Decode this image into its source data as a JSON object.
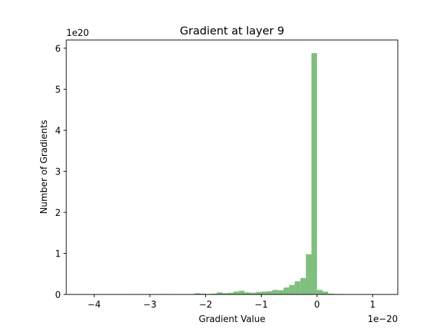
{
  "chart_data": {
    "type": "bar",
    "title": "Gradient at layer 9",
    "xlabel": "Gradient Value",
    "ylabel": "Number of Gradients",
    "x_multiplier_label": "1e−20",
    "y_multiplier_label": "1e20",
    "xlim": [
      -4.5,
      1.45
    ],
    "ylim": [
      0,
      6.2
    ],
    "x_ticks": [
      -4,
      -3,
      -2,
      -1,
      0,
      1
    ],
    "x_tick_labels": [
      "−4",
      "−3",
      "−2",
      "−1",
      "0",
      "1"
    ],
    "y_ticks": [
      0,
      1,
      2,
      3,
      4,
      5,
      6
    ],
    "y_tick_labels": [
      "0",
      "1",
      "2",
      "3",
      "4",
      "5",
      "6"
    ],
    "bar_color": "#7fbf7f",
    "bin_width": 0.1,
    "bins": [
      {
        "x": -3.3,
        "y": 0.01
      },
      {
        "x": -2.8,
        "y": 0.01
      },
      {
        "x": -2.6,
        "y": 0.01
      },
      {
        "x": -2.2,
        "y": 0.03
      },
      {
        "x": -2.1,
        "y": 0.02
      },
      {
        "x": -2.0,
        "y": 0.01
      },
      {
        "x": -1.9,
        "y": 0.02
      },
      {
        "x": -1.8,
        "y": 0.05
      },
      {
        "x": -1.7,
        "y": 0.03
      },
      {
        "x": -1.6,
        "y": 0.04
      },
      {
        "x": -1.5,
        "y": 0.07
      },
      {
        "x": -1.4,
        "y": 0.09
      },
      {
        "x": -1.3,
        "y": 0.05
      },
      {
        "x": -1.2,
        "y": 0.04
      },
      {
        "x": -1.1,
        "y": 0.06
      },
      {
        "x": -1.0,
        "y": 0.07
      },
      {
        "x": -0.9,
        "y": 0.08
      },
      {
        "x": -0.8,
        "y": 0.11
      },
      {
        "x": -0.7,
        "y": 0.1
      },
      {
        "x": -0.6,
        "y": 0.17
      },
      {
        "x": -0.5,
        "y": 0.23
      },
      {
        "x": -0.4,
        "y": 0.32
      },
      {
        "x": -0.3,
        "y": 0.4
      },
      {
        "x": -0.2,
        "y": 0.98
      },
      {
        "x": -0.1,
        "y": 5.88
      },
      {
        "x": 0.0,
        "y": 0.11
      },
      {
        "x": 0.1,
        "y": 0.07
      },
      {
        "x": 0.2,
        "y": 0.02
      },
      {
        "x": 0.3,
        "y": 0.01
      },
      {
        "x": 0.4,
        "y": 0.01
      }
    ]
  }
}
